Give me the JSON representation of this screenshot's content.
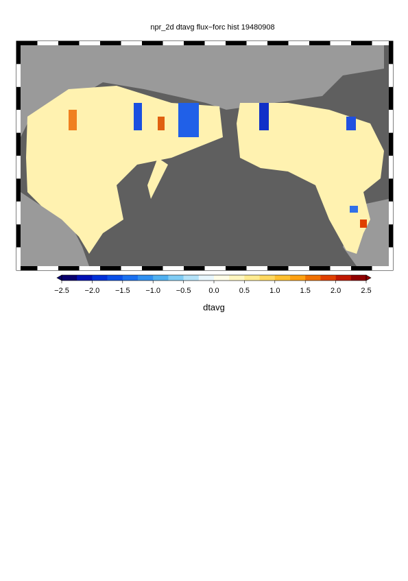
{
  "title": "npr_2d dtavg flux−forc hist 19480908",
  "colorbar": {
    "label": "dtavg",
    "range": [
      -2.5,
      2.5
    ],
    "ticks": [
      {
        "value": -2.5,
        "label": "−2.5"
      },
      {
        "value": -2.0,
        "label": "−2.0"
      },
      {
        "value": -1.5,
        "label": "−1.5"
      },
      {
        "value": -1.0,
        "label": "−1.0"
      },
      {
        "value": -0.5,
        "label": "−0.5"
      },
      {
        "value": 0,
        "label": "0.0"
      },
      0.5,
      {
        "value": 1.0,
        "label": "1.0"
      },
      1.5,
      {
        "value": 2.0,
        "label": "2.0"
      },
      2.5
    ],
    "colors": [
      "#08006e",
      "#0010b4",
      "#0030d8",
      "#0a50e8",
      "#1a70f0",
      "#3090f0",
      "#50b0f0",
      "#80ccf4",
      "#b4e2f8",
      "#e8f6fc",
      "#fffde8",
      "#fff6c0",
      "#ffeb90",
      "#ffd860",
      "#ffc030",
      "#ffa010",
      "#f07000",
      "#e04000",
      "#c01800",
      "#900000"
    ]
  }
}
